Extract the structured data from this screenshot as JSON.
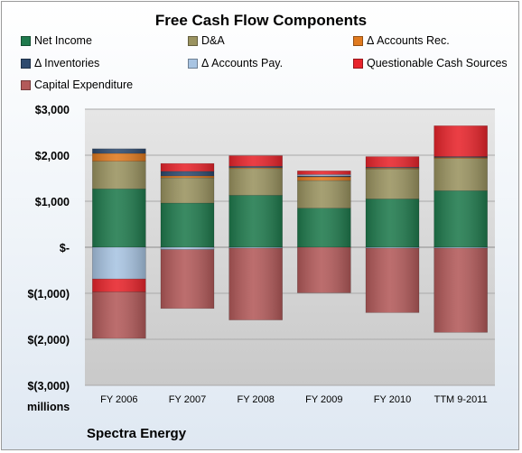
{
  "chart_data": {
    "type": "bar",
    "stacked": true,
    "title": "Free Cash Flow Components",
    "units": "millions",
    "company": "Spectra Energy",
    "categories": [
      "FY 2006",
      "FY 2007",
      "FY 2008",
      "FY 2009",
      "FY 2010",
      "TTM 9-2011"
    ],
    "ylim": [
      -3000,
      3000
    ],
    "yticks": [
      3000,
      2000,
      1000,
      0,
      -1000,
      -2000,
      -3000
    ],
    "ytick_labels": [
      "$3,000",
      "$2,000",
      "$1,000",
      "$-",
      "$(1,000)",
      "$(2,000)",
      "$(3,000)"
    ],
    "grid": true,
    "legend_position": "top",
    "series": [
      {
        "name": "Net Income",
        "color": "#1f7a4d",
        "values": [
          1270,
          960,
          1130,
          850,
          1050,
          1230
        ]
      },
      {
        "name": "D&A",
        "color": "#9a9360",
        "values": [
          600,
          550,
          580,
          600,
          650,
          700
        ]
      },
      {
        "name": "Δ Accounts Rec.",
        "color": "#e07a1f",
        "values": [
          170,
          40,
          20,
          80,
          20,
          20
        ]
      },
      {
        "name": "Δ Inventories",
        "color": "#2e4a6e",
        "values": [
          100,
          100,
          30,
          20,
          20,
          20
        ]
      },
      {
        "name": "Δ Accounts Pay.",
        "color": "#a8c4e2",
        "values": [
          -690,
          -50,
          -20,
          30,
          -20,
          -20
        ]
      },
      {
        "name": "Questionable Cash Sources",
        "color": "#e8242b",
        "values": [
          -280,
          170,
          230,
          80,
          230,
          670
        ]
      },
      {
        "name": "Capital Expenditure",
        "color": "#b35a5a",
        "values": [
          -1010,
          -1280,
          -1560,
          -990,
          -1400,
          -1830
        ]
      }
    ]
  }
}
